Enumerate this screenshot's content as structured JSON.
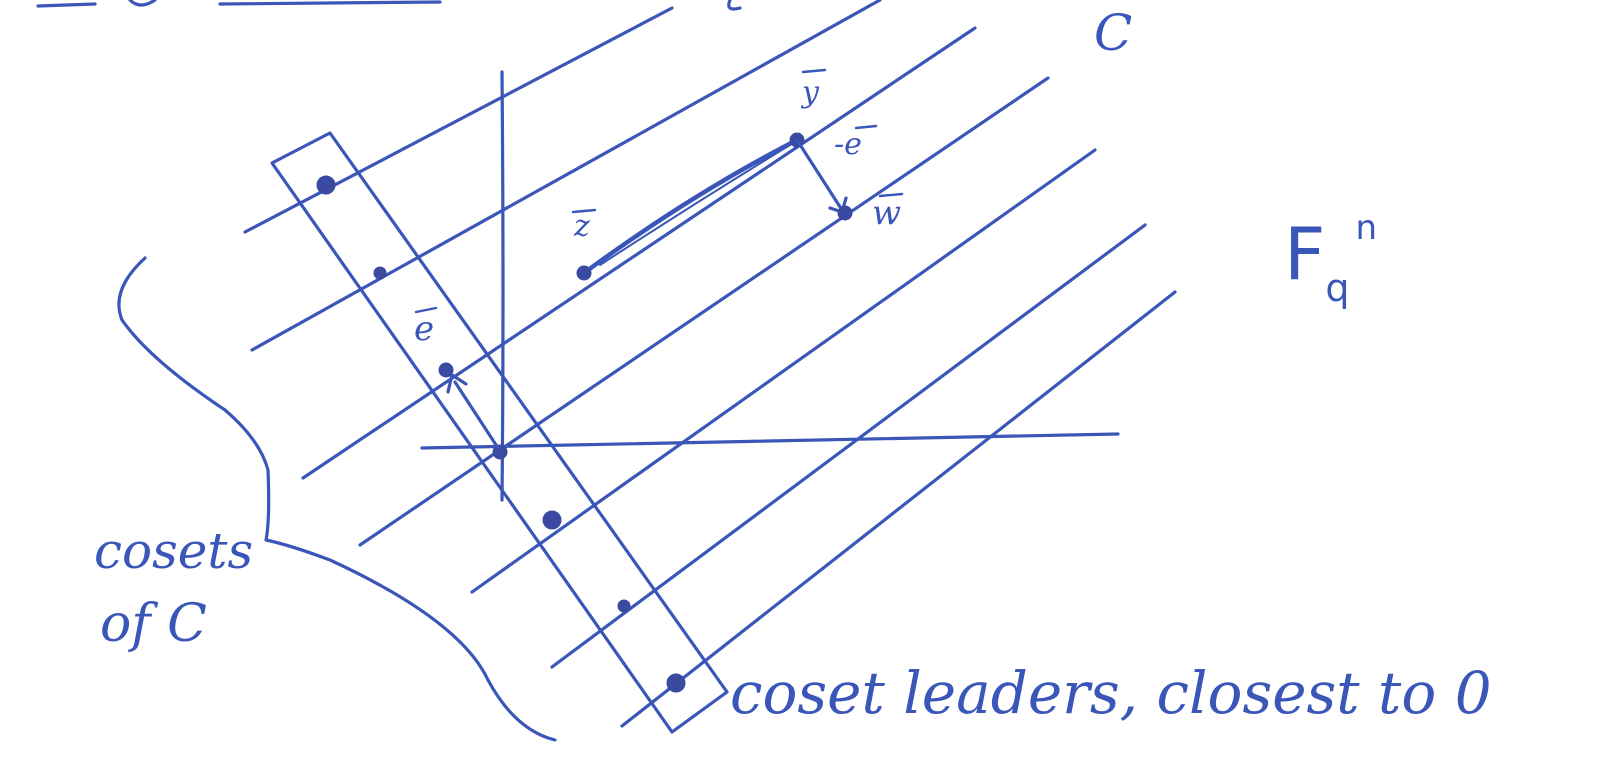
{
  "labels": {
    "code": "C",
    "space": "F",
    "space_sub": "q",
    "space_sup": "n",
    "vec_y": "y",
    "vec_z": "z",
    "vec_w": "w",
    "vec_e": "e",
    "minus_e": "-e",
    "cosets_line1": "cosets",
    "cosets_line2": "of C",
    "leaders": "coset leaders, closest to 0"
  },
  "colors": {
    "ink": "#3a56b8",
    "dot": "#3a4aa0",
    "paper": "#ffffff"
  }
}
